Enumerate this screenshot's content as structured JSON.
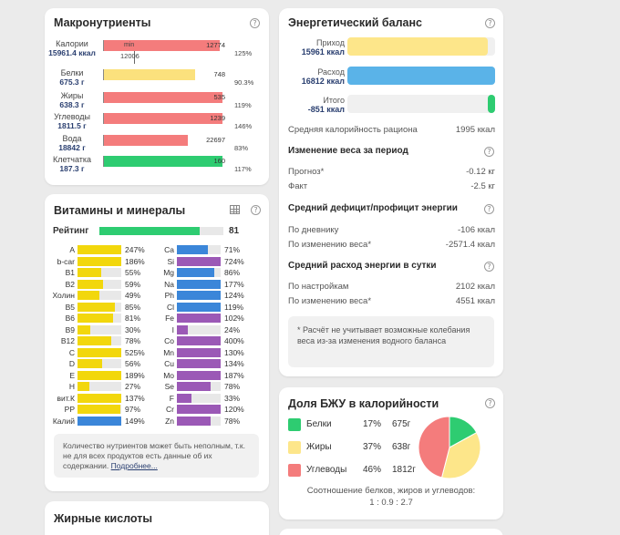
{
  "macros": {
    "title": "Макронутриенты",
    "rows": [
      {
        "name": "Калории",
        "amount": "15961.4",
        "unit": "ккал",
        "value": "12774",
        "pct": "125%",
        "fill": 0.905,
        "color": "#f47c7c"
      },
      {
        "name": "Белки",
        "amount": "675.3",
        "unit": "г",
        "value": "748",
        "pct": "90.3%",
        "fill": 0.715,
        "color": "#fbe17d"
      },
      {
        "name": "Жиры",
        "amount": "638.3",
        "unit": "г",
        "value": "535",
        "pct": "119%",
        "fill": 0.93,
        "color": "#f47c7c"
      },
      {
        "name": "Углеводы",
        "amount": "1811.5",
        "unit": "г",
        "value": "1239",
        "pct": "146%",
        "fill": 0.93,
        "color": "#f47c7c"
      },
      {
        "name": "Вода",
        "amount": "18842",
        "unit": "г",
        "value": "22697",
        "pct": "83%",
        "fill": 0.66,
        "color": "#f47c7c"
      },
      {
        "name": "Клетчатка",
        "amount": "187.3",
        "unit": "г",
        "value": "160",
        "pct": "117%",
        "fill": 0.93,
        "color": "#2ecc71"
      }
    ],
    "cal_min": "min",
    "cal_norm": "12006"
  },
  "vitamins": {
    "title": "Витамины и минералы",
    "rating_label": "Рейтинг",
    "rating_value": "81",
    "rating_fill": 0.81,
    "left": [
      {
        "n": "A",
        "p": "247%",
        "f": 1.0,
        "c": "#f2d70c"
      },
      {
        "n": "b-car",
        "p": "186%",
        "f": 1.0,
        "c": "#f2d70c"
      },
      {
        "n": "B1",
        "p": "55%",
        "f": 0.55,
        "c": "#f2d70c"
      },
      {
        "n": "B2",
        "p": "59%",
        "f": 0.59,
        "c": "#f2d70c"
      },
      {
        "n": "Холин",
        "p": "49%",
        "f": 0.49,
        "c": "#f2d70c"
      },
      {
        "n": "B5",
        "p": "85%",
        "f": 0.85,
        "c": "#f2d70c"
      },
      {
        "n": "B6",
        "p": "81%",
        "f": 0.81,
        "c": "#f2d70c"
      },
      {
        "n": "B9",
        "p": "30%",
        "f": 0.3,
        "c": "#f2d70c"
      },
      {
        "n": "B12",
        "p": "78%",
        "f": 0.78,
        "c": "#f2d70c"
      },
      {
        "n": "C",
        "p": "525%",
        "f": 1.0,
        "c": "#f2d70c"
      },
      {
        "n": "D",
        "p": "56%",
        "f": 0.56,
        "c": "#f2d70c"
      },
      {
        "n": "E",
        "p": "189%",
        "f": 1.0,
        "c": "#f2d70c"
      },
      {
        "n": "H",
        "p": "27%",
        "f": 0.27,
        "c": "#f2d70c"
      },
      {
        "n": "вит.К",
        "p": "137%",
        "f": 1.0,
        "c": "#f2d70c"
      },
      {
        "n": "PP",
        "p": "97%",
        "f": 0.97,
        "c": "#f2d70c"
      },
      {
        "n": "Калий",
        "p": "149%",
        "f": 1.0,
        "c": "#3b86d9"
      }
    ],
    "right": [
      {
        "n": "Ca",
        "p": "71%",
        "f": 0.71,
        "c": "#3b86d9"
      },
      {
        "n": "Si",
        "p": "724%",
        "f": 1.0,
        "c": "#9b59b6"
      },
      {
        "n": "Mg",
        "p": "86%",
        "f": 0.86,
        "c": "#3b86d9"
      },
      {
        "n": "Na",
        "p": "177%",
        "f": 1.0,
        "c": "#3b86d9"
      },
      {
        "n": "Ph",
        "p": "124%",
        "f": 1.0,
        "c": "#3b86d9"
      },
      {
        "n": "Cl",
        "p": "119%",
        "f": 1.0,
        "c": "#3b86d9"
      },
      {
        "n": "Fe",
        "p": "102%",
        "f": 1.0,
        "c": "#9b59b6"
      },
      {
        "n": "I",
        "p": "24%",
        "f": 0.24,
        "c": "#9b59b6"
      },
      {
        "n": "Co",
        "p": "400%",
        "f": 1.0,
        "c": "#9b59b6"
      },
      {
        "n": "Mn",
        "p": "130%",
        "f": 1.0,
        "c": "#9b59b6"
      },
      {
        "n": "Cu",
        "p": "134%",
        "f": 1.0,
        "c": "#9b59b6"
      },
      {
        "n": "Mo",
        "p": "187%",
        "f": 1.0,
        "c": "#9b59b6"
      },
      {
        "n": "Se",
        "p": "78%",
        "f": 0.78,
        "c": "#9b59b6"
      },
      {
        "n": "F",
        "p": "33%",
        "f": 0.33,
        "c": "#9b59b6"
      },
      {
        "n": "Cr",
        "p": "120%",
        "f": 1.0,
        "c": "#9b59b6"
      },
      {
        "n": "Zn",
        "p": "78%",
        "f": 0.78,
        "c": "#9b59b6"
      }
    ],
    "note": "Количество нутриентов может быть неполным, т.к. не для всех продуктов есть данные об их содержании.",
    "note_link": "Подробнее..."
  },
  "fatty": {
    "title": "Жирные кислоты"
  },
  "energy": {
    "title": "Энергетический баланс",
    "rows": [
      {
        "label": "Приход",
        "value": "15961 ккал",
        "fill": 0.95,
        "color": "#fde68a"
      },
      {
        "label": "Расход",
        "value": "16812 ккал",
        "fill": 1.0,
        "color": "#5ab3e8"
      },
      {
        "label": "Итого",
        "value": "-851 ккал",
        "fill": 0.05,
        "color": "#2ecc71"
      }
    ],
    "avg_label": "Средняя калорийность рациона",
    "avg_value": "1995 ккал",
    "weight_title": "Изменение веса за период",
    "forecast_label": "Прогноз*",
    "forecast_value": "-0.12 кг",
    "fact_label": "Факт",
    "fact_value": "-2.5 кг",
    "deficit_title": "Средний дефицит/профицит энергии",
    "by_diary_label": "По дневнику",
    "by_diary_value": "-106 ккал",
    "by_weight_label": "По изменению веса*",
    "by_weight_value": "-2571.4 ккал",
    "expense_title": "Средний расход энергии в сутки",
    "by_settings_label": "По настройкам",
    "by_settings_value": "2102 ккал",
    "by_weight2_label": "По изменению веса*",
    "by_weight2_value": "4551 ккал",
    "footnote": "* Расчёт не учитывает возможные колебания веса из-за изменения водного баланса"
  },
  "bju": {
    "title": "Доля БЖУ в калорийности",
    "rows": [
      {
        "name": "Белки",
        "pct": "17%",
        "grams": "675г",
        "color": "#2ecc71",
        "share": 17
      },
      {
        "name": "Жиры",
        "pct": "37%",
        "grams": "638г",
        "color": "#fde68a",
        "share": 37
      },
      {
        "name": "Углеводы",
        "pct": "46%",
        "grams": "1812г",
        "color": "#f47c7c",
        "share": 46
      }
    ],
    "ratio_label": "Соотношение белков, жиров и углеводов:",
    "ratio_value": "1 : 0.9 : 2.7"
  }
}
